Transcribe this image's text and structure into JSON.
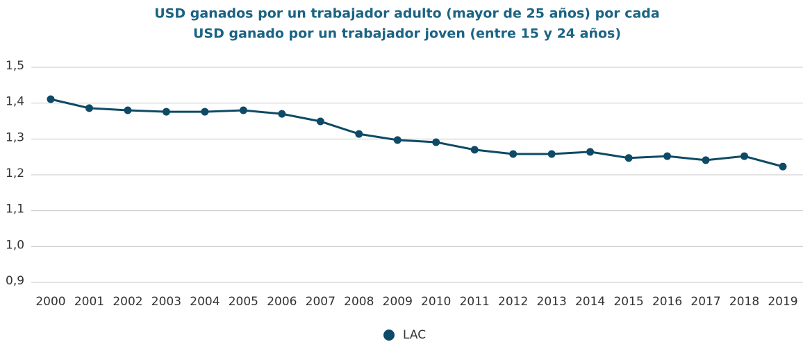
{
  "chart_data": {
    "type": "line",
    "title": [
      "USD ganados por un trabajador adulto (mayor de 25 años) por cada",
      "USD ganado por un trabajador joven (entre 15 y 24 años)"
    ],
    "categories": [
      "2000",
      "2001",
      "2002",
      "2003",
      "2004",
      "2005",
      "2006",
      "2007",
      "2008",
      "2009",
      "2010",
      "2011",
      "2012",
      "2013",
      "2014",
      "2015",
      "2016",
      "2017",
      "2018",
      "2019"
    ],
    "series": [
      {
        "name": "LAC",
        "color": "#0e4a66",
        "values": [
          1.411,
          1.386,
          1.38,
          1.376,
          1.376,
          1.38,
          1.37,
          1.349,
          1.314,
          1.297,
          1.291,
          1.27,
          1.258,
          1.258,
          1.264,
          1.247,
          1.252,
          1.241,
          1.252,
          1.223
        ]
      }
    ],
    "ylim": [
      0.9,
      1.5
    ],
    "yticks": [
      {
        "value": 0.9,
        "label": "0,9"
      },
      {
        "value": 1.0,
        "label": "1,0"
      },
      {
        "value": 1.1,
        "label": "1,1"
      },
      {
        "value": 1.2,
        "label": "1,2"
      },
      {
        "value": 1.3,
        "label": "1,3"
      },
      {
        "value": 1.4,
        "label": "1,4"
      },
      {
        "value": 1.5,
        "label": "1,5"
      }
    ],
    "grid": true,
    "legend": "bottom"
  }
}
